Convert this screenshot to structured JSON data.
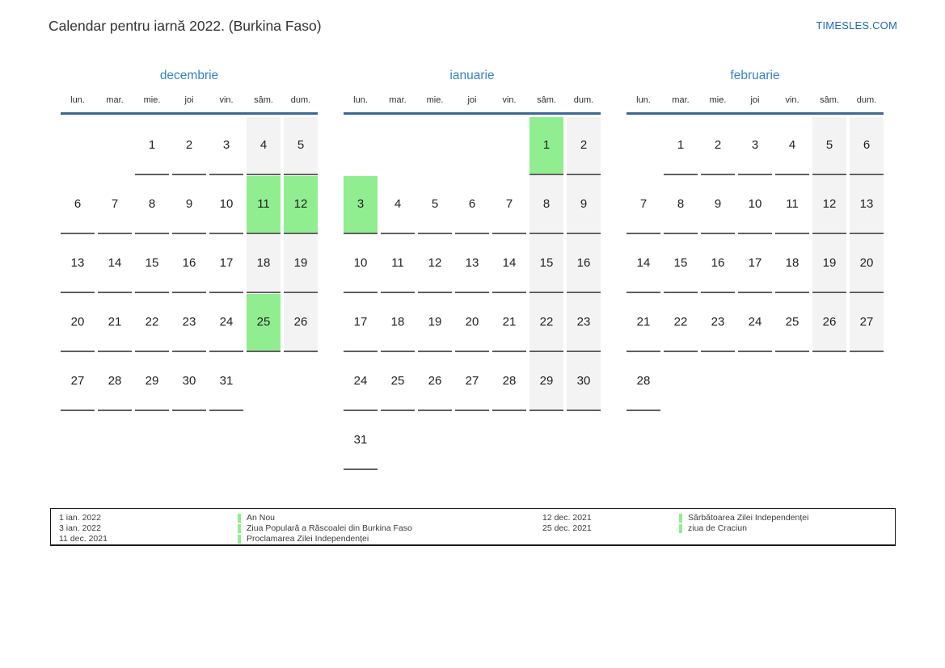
{
  "page": {
    "title": "Calendar pentru iarnă 2022. (Burkina Faso)",
    "site_link": "TIMESLES.COM"
  },
  "colors": {
    "month_title_blue": "#3483c8",
    "header_rule_blue": "#3f6795",
    "link_blue": "#1b6ab5",
    "weekend_bg": "#f3f3f3",
    "holiday_green": "#90ee90"
  },
  "weekday_headers": [
    "lun.",
    "mar.",
    "mie.",
    "joi",
    "vin.",
    "sâm.",
    "dum."
  ],
  "months": [
    {
      "name": "decembrie",
      "weeks": [
        [
          null,
          null,
          1,
          2,
          3,
          4,
          5
        ],
        [
          6,
          7,
          8,
          9,
          10,
          11,
          12
        ],
        [
          13,
          14,
          15,
          16,
          17,
          18,
          19
        ],
        [
          20,
          21,
          22,
          23,
          24,
          25,
          26
        ],
        [
          27,
          28,
          29,
          30,
          31,
          null,
          null
        ]
      ],
      "highlighted": [
        11,
        12,
        25
      ]
    },
    {
      "name": "ianuarie",
      "weeks": [
        [
          null,
          null,
          null,
          null,
          null,
          1,
          2
        ],
        [
          3,
          4,
          5,
          6,
          7,
          8,
          9
        ],
        [
          10,
          11,
          12,
          13,
          14,
          15,
          16
        ],
        [
          17,
          18,
          19,
          20,
          21,
          22,
          23
        ],
        [
          24,
          25,
          26,
          27,
          28,
          29,
          30
        ],
        [
          31,
          null,
          null,
          null,
          null,
          null,
          null
        ]
      ],
      "highlighted": [
        1,
        3
      ]
    },
    {
      "name": "februarie",
      "weeks": [
        [
          null,
          1,
          2,
          3,
          4,
          5,
          6
        ],
        [
          7,
          8,
          9,
          10,
          11,
          12,
          13
        ],
        [
          14,
          15,
          16,
          17,
          18,
          19,
          20
        ],
        [
          21,
          22,
          23,
          24,
          25,
          26,
          27
        ],
        [
          28,
          null,
          null,
          null,
          null,
          null,
          null
        ]
      ],
      "highlighted": []
    }
  ],
  "legend": {
    "left": {
      "dates": [
        "1 ian. 2022",
        "3 ian. 2022",
        "11 dec. 2021"
      ],
      "names": [
        "An Nou",
        "Ziua Populară a Răscoalei din Burkina Faso",
        "Proclamarea Zilei Independenței"
      ]
    },
    "right": {
      "dates": [
        "12 dec. 2021",
        "25 dec. 2021"
      ],
      "names": [
        "Sărbătoarea Zilei Independenței",
        "ziua de Craciun"
      ]
    }
  }
}
